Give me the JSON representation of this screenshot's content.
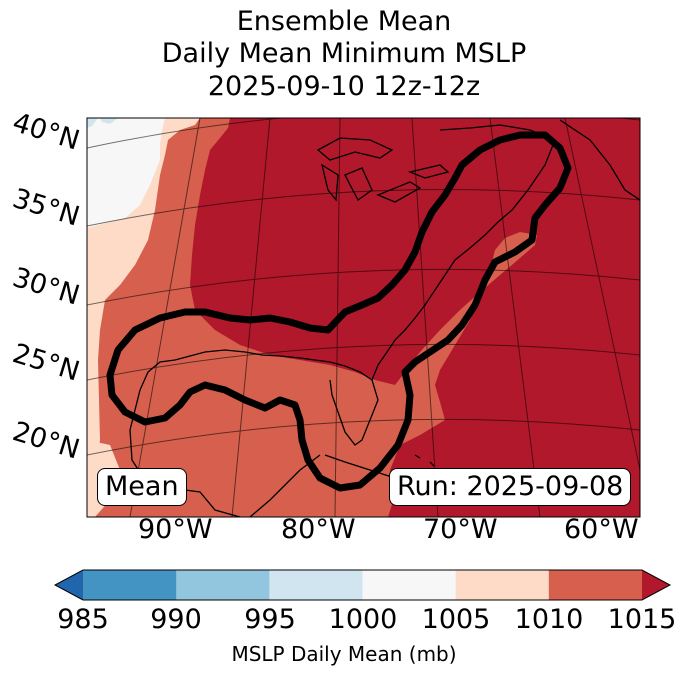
{
  "title": {
    "line1": "Ensemble Mean",
    "line2": "Daily Mean Minimum MSLP",
    "line3": "2025-09-10 12z-12z"
  },
  "map": {
    "lat_labels": [
      "40°N",
      "35°N",
      "30°N",
      "25°N",
      "20°N"
    ],
    "lon_labels": [
      "90°W",
      "80°W",
      "70°W",
      "60°W"
    ],
    "mean_box": "Mean",
    "run_box": "Run: 2025-09-08",
    "colors": {
      "dark_red": "#b2182b",
      "red": "#d6604d",
      "light_salmon": "#fddbc7",
      "near_white": "#f7f7f7",
      "light_blue": "#d1e5f0",
      "contour": "#000000"
    }
  },
  "colorbar": {
    "label": "MSLP Daily Mean (mb)",
    "ticks": [
      "985",
      "990",
      "995",
      "1000",
      "1005",
      "1010",
      "1015"
    ],
    "colors": [
      "#2166ac",
      "#4393c3",
      "#92c5de",
      "#d1e5f0",
      "#f7f7f7",
      "#fddbc7",
      "#d6604d",
      "#b2182b"
    ]
  }
}
